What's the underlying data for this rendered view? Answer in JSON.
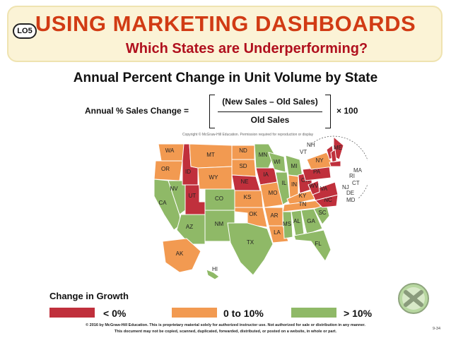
{
  "header": {
    "badge": "LO5",
    "title": "USING MARKETING DASHBOARDS",
    "subtitle": "Which States are Underperforming?"
  },
  "chart_title": "Annual Percent Change in Unit Volume by State",
  "formula": {
    "left": "Annual % Sales Change =",
    "numerator": "(New Sales – Old Sales)",
    "denominator": "Old Sales",
    "times": "×  100"
  },
  "map": {
    "copyright": "Copyright © McGraw-Hill Education. Permission required for reproduction or display",
    "colors": {
      "negative": "#c0303c",
      "mid": "#f29a51",
      "positive": "#8fb967"
    },
    "states": [
      {
        "abbr": "WA",
        "group": "mid"
      },
      {
        "abbr": "OR",
        "group": "mid"
      },
      {
        "abbr": "CA",
        "group": "positive"
      },
      {
        "abbr": "NV",
        "group": "positive"
      },
      {
        "abbr": "ID",
        "group": "negative"
      },
      {
        "abbr": "UT",
        "group": "negative"
      },
      {
        "abbr": "AZ",
        "group": "positive"
      },
      {
        "abbr": "MT",
        "group": "mid"
      },
      {
        "abbr": "WY",
        "group": "mid"
      },
      {
        "abbr": "CO",
        "group": "positive"
      },
      {
        "abbr": "NM",
        "group": "positive"
      },
      {
        "abbr": "ND",
        "group": "mid"
      },
      {
        "abbr": "SD",
        "group": "mid"
      },
      {
        "abbr": "NE",
        "group": "negative"
      },
      {
        "abbr": "KS",
        "group": "mid"
      },
      {
        "abbr": "OK",
        "group": "mid"
      },
      {
        "abbr": "TX",
        "group": "positive"
      },
      {
        "abbr": "MN",
        "group": "positive"
      },
      {
        "abbr": "IA",
        "group": "negative"
      },
      {
        "abbr": "MO",
        "group": "mid"
      },
      {
        "abbr": "AR",
        "group": "mid"
      },
      {
        "abbr": "LA",
        "group": "mid"
      },
      {
        "abbr": "WI",
        "group": "positive"
      },
      {
        "abbr": "IL",
        "group": "positive"
      },
      {
        "abbr": "MI",
        "group": "positive"
      },
      {
        "abbr": "IN",
        "group": "mid"
      },
      {
        "abbr": "OH",
        "group": "negative"
      },
      {
        "abbr": "KY",
        "group": "mid"
      },
      {
        "abbr": "TN",
        "group": "mid"
      },
      {
        "abbr": "MS",
        "group": "positive"
      },
      {
        "abbr": "AL",
        "group": "positive"
      },
      {
        "abbr": "GA",
        "group": "positive"
      },
      {
        "abbr": "FL",
        "group": "positive"
      },
      {
        "abbr": "SC",
        "group": "positive"
      },
      {
        "abbr": "NC",
        "group": "negative"
      },
      {
        "abbr": "VA",
        "group": "negative"
      },
      {
        "abbr": "WV",
        "group": "negative"
      },
      {
        "abbr": "PA",
        "group": "negative"
      },
      {
        "abbr": "NY",
        "group": "mid"
      },
      {
        "abbr": "ME",
        "group": "negative"
      },
      {
        "abbr": "VT",
        "group": "negative"
      },
      {
        "abbr": "NH",
        "group": "negative"
      },
      {
        "abbr": "MA",
        "group": "negative"
      },
      {
        "abbr": "AK",
        "group": "mid"
      },
      {
        "abbr": "HI",
        "group": "positive"
      }
    ],
    "callouts": [
      "NH",
      "VT",
      "MA",
      "RI",
      "CT",
      "NJ",
      "DE",
      "MD"
    ]
  },
  "legend": {
    "heading": "Change in Growth",
    "items": [
      {
        "label": "< 0%",
        "color": "#c0303c"
      },
      {
        "label": "0 to 10%",
        "color": "#f29a51"
      },
      {
        "label": "> 10%",
        "color": "#8fb967"
      }
    ]
  },
  "footer": {
    "line1": "© 2016 by McGraw-Hill Education. This is proprietary material solely for authorized instructor use. Not authorized for sale or distribution in any manner.",
    "line2": "This document may not be copied, scanned, duplicated, forwarded, distributed, or posted on a website, in whole or part.",
    "page": "9-34"
  }
}
